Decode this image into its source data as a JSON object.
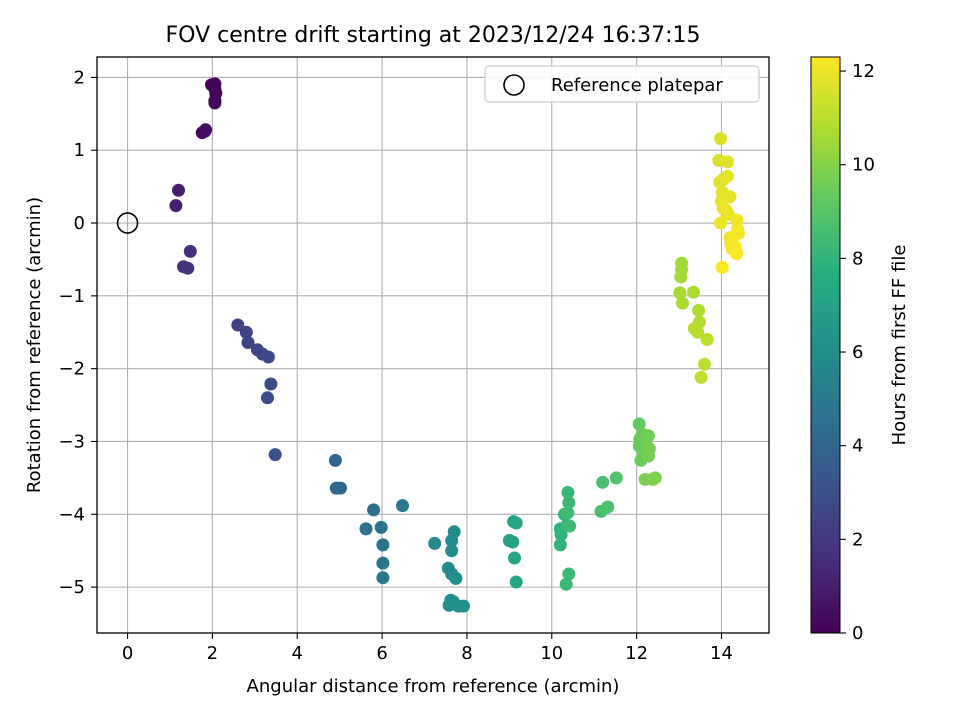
{
  "chart_data": {
    "type": "scatter",
    "title": "FOV centre drift starting at 2023/12/24 16:37:15",
    "xlabel": "Angular distance from reference (arcmin)",
    "ylabel": "Rotation from reference (arcmin)",
    "xlim": [
      -0.72,
      15.12
    ],
    "ylim": [
      -5.63,
      2.28
    ],
    "xticks": [
      0,
      2,
      4,
      6,
      8,
      10,
      12,
      14
    ],
    "yticks": [
      2,
      1,
      0,
      -1,
      -2,
      -3,
      -4,
      -5
    ],
    "xtick_labels": [
      "0",
      "2",
      "4",
      "6",
      "8",
      "10",
      "12",
      "14"
    ],
    "ytick_labels": [
      "2",
      "1",
      "0",
      "−1",
      "−2",
      "−3",
      "−4",
      "−5"
    ],
    "grid": true,
    "colormap": "viridis",
    "colorbar": {
      "label": "Hours from first FF file",
      "range": [
        0,
        12.3
      ],
      "ticks": [
        0,
        2,
        4,
        6,
        8,
        10,
        12
      ],
      "tick_labels": [
        "0",
        "2",
        "4",
        "6",
        "8",
        "10",
        "12"
      ]
    },
    "legend": {
      "position": "top-right",
      "label": "Reference platepar"
    },
    "reference_point": {
      "x": 0,
      "y": 0,
      "marker": "open-circle"
    },
    "x": [
      1.98,
      2.06,
      2.06,
      2.08,
      2.06,
      2.06,
      1.76,
      1.82,
      1.84,
      1.2,
      1.14,
      1.48,
      1.32,
      1.42,
      2.6,
      2.8,
      2.84,
      3.06,
      3.18,
      3.32,
      3.38,
      3.3,
      3.48,
      4.9,
      4.92,
      5.02,
      5.8,
      5.62,
      5.98,
      6.02,
      6.02,
      6.02,
      6.48,
      7.24,
      7.56,
      7.64,
      7.7,
      7.64,
      7.64,
      7.68,
      7.74,
      7.8,
      7.58,
      7.62,
      7.92,
      9.0,
      9.08,
      9.1,
      9.16,
      9.12,
      9.16,
      10.2,
      10.22,
      10.2,
      10.3,
      10.36,
      10.38,
      10.4,
      10.34,
      10.4,
      10.42,
      10.38,
      11.2,
      11.16,
      11.32,
      11.52,
      12.06,
      12.08,
      12.06,
      12.1,
      12.14,
      12.16,
      12.28,
      12.24,
      12.28,
      12.3,
      12.38,
      12.2,
      12.44,
      13.06,
      13.06,
      13.04,
      13.02,
      13.08,
      13.34,
      13.46,
      13.48,
      13.36,
      13.44,
      13.66,
      13.6,
      13.52,
      13.98,
      13.94,
      14.14,
      14.04,
      13.96,
      14.02,
      14.14,
      14.2,
      14.0,
      14.04,
      14.1,
      14.16,
      13.98,
      14.2,
      14.24,
      14.36,
      14.38,
      14.4,
      14.22,
      14.26,
      14.32,
      14.36,
      14.02
    ],
    "y": [
      1.9,
      1.91,
      1.84,
      1.78,
      1.68,
      1.65,
      1.24,
      1.26,
      1.28,
      0.45,
      0.24,
      -0.39,
      -0.6,
      -0.62,
      -1.4,
      -1.5,
      -1.64,
      -1.74,
      -1.8,
      -1.84,
      -2.21,
      -2.4,
      -3.18,
      -3.26,
      -3.64,
      -3.64,
      -3.94,
      -4.2,
      -4.18,
      -4.42,
      -4.67,
      -4.87,
      -3.88,
      -4.4,
      -4.74,
      -4.82,
      -4.24,
      -4.36,
      -4.5,
      -5.2,
      -4.88,
      -5.26,
      -5.25,
      -5.18,
      -5.26,
      -4.36,
      -4.38,
      -4.1,
      -4.12,
      -4.6,
      -4.93,
      -4.2,
      -4.28,
      -4.42,
      -4.0,
      -4.15,
      -3.7,
      -3.84,
      -4.96,
      -4.82,
      -4.16,
      -3.98,
      -3.56,
      -3.96,
      -3.9,
      -3.5,
      -2.76,
      -2.96,
      -3.06,
      -3.26,
      -2.9,
      -3.14,
      -2.92,
      -3.06,
      -3.2,
      -3.1,
      -3.52,
      -3.52,
      -3.5,
      -0.55,
      -0.64,
      -0.74,
      -0.96,
      -1.1,
      -0.95,
      -1.2,
      -1.36,
      -1.45,
      -1.5,
      -1.6,
      -1.94,
      -2.12,
      1.16,
      0.86,
      0.84,
      0.6,
      0.56,
      0.42,
      0.64,
      0.36,
      0.3,
      0.2,
      0.18,
      0.12,
      0.0,
      -0.2,
      -0.22,
      0.04,
      -0.08,
      -0.14,
      -0.28,
      -0.36,
      -0.32,
      -0.42,
      -0.61
    ],
    "hours": [
      0.1,
      0.12,
      0.14,
      0.16,
      0.18,
      0.2,
      0.32,
      0.34,
      0.36,
      1.0,
      1.05,
      1.7,
      1.75,
      1.8,
      2.4,
      2.45,
      2.5,
      2.6,
      2.65,
      2.7,
      2.8,
      2.85,
      3.0,
      4.0,
      4.05,
      4.1,
      4.5,
      4.55,
      4.6,
      4.65,
      4.7,
      4.75,
      4.85,
      5.7,
      5.75,
      5.8,
      5.85,
      5.88,
      5.9,
      5.95,
      6.0,
      6.05,
      6.08,
      6.1,
      6.15,
      7.0,
      7.05,
      7.1,
      7.15,
      7.2,
      7.25,
      7.9,
      7.95,
      8.0,
      8.05,
      8.1,
      8.15,
      8.2,
      8.25,
      8.3,
      8.35,
      8.4,
      8.6,
      8.65,
      8.7,
      8.8,
      9.3,
      9.35,
      9.4,
      9.45,
      9.5,
      9.55,
      9.6,
      9.62,
      9.65,
      9.7,
      9.75,
      9.8,
      9.85,
      10.5,
      10.55,
      10.6,
      10.65,
      10.7,
      10.75,
      10.8,
      10.85,
      10.9,
      10.95,
      11.0,
      11.05,
      11.1,
      11.6,
      11.65,
      11.7,
      11.72,
      11.75,
      11.8,
      11.82,
      11.85,
      11.9,
      11.92,
      11.95,
      12.0,
      12.02,
      12.05,
      12.08,
      12.1,
      12.12,
      12.15,
      12.18,
      12.2,
      12.22,
      12.25,
      12.28
    ]
  }
}
